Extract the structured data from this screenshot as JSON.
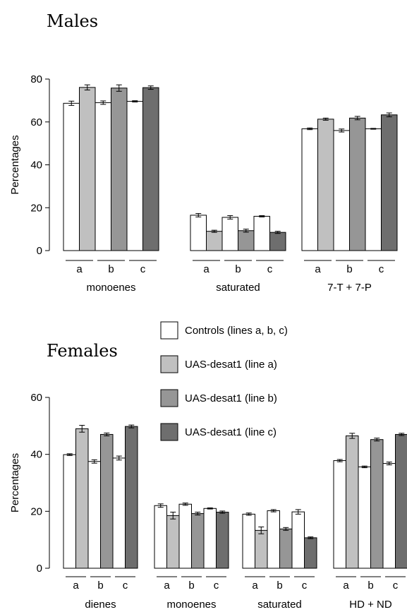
{
  "panels": [
    {
      "id": "males",
      "title": "Males",
      "ylabel": "Percentages",
      "ylim": [
        0,
        80
      ],
      "yticks": [
        0,
        20,
        40,
        60,
        80
      ],
      "line_labels": [
        "a",
        "b",
        "c"
      ],
      "groups": [
        {
          "label": "monoenes",
          "bars": [
            {
              "v": 68.7,
              "e": 1.0
            },
            {
              "v": 76.1,
              "e": 1.2
            },
            {
              "v": 69.0,
              "e": 0.8
            },
            {
              "v": 75.8,
              "e": 1.5
            },
            {
              "v": 69.6,
              "e": 0.3
            },
            {
              "v": 76.0,
              "e": 0.8
            }
          ]
        },
        {
          "label": "saturated",
          "bars": [
            {
              "v": 16.5,
              "e": 0.8
            },
            {
              "v": 9.0,
              "e": 0.5
            },
            {
              "v": 15.5,
              "e": 0.8
            },
            {
              "v": 9.3,
              "e": 0.7
            },
            {
              "v": 16.0,
              "e": 0.3
            },
            {
              "v": 8.5,
              "e": 0.5
            }
          ]
        },
        {
          "label": "7-T + 7-P",
          "bars": [
            {
              "v": 56.8,
              "e": 0.4
            },
            {
              "v": 61.3,
              "e": 0.5
            },
            {
              "v": 56.0,
              "e": 0.7
            },
            {
              "v": 61.8,
              "e": 0.8
            },
            {
              "v": 56.8,
              "e": 0.2
            },
            {
              "v": 63.3,
              "e": 0.9
            }
          ]
        }
      ]
    },
    {
      "id": "females",
      "title": "Females",
      "ylabel": "Percentages",
      "ylim": [
        0,
        60
      ],
      "yticks": [
        0,
        20,
        40,
        60
      ],
      "line_labels": [
        "a",
        "b",
        "c"
      ],
      "groups": [
        {
          "label": "dienes",
          "bars": [
            {
              "v": 39.9,
              "e": 0.3
            },
            {
              "v": 49.0,
              "e": 1.2
            },
            {
              "v": 37.5,
              "e": 0.6
            },
            {
              "v": 47.0,
              "e": 0.5
            },
            {
              "v": 38.7,
              "e": 0.7
            },
            {
              "v": 49.8,
              "e": 0.5
            }
          ]
        },
        {
          "label": "monoenes",
          "bars": [
            {
              "v": 22.0,
              "e": 0.6
            },
            {
              "v": 18.5,
              "e": 1.2
            },
            {
              "v": 22.5,
              "e": 0.4
            },
            {
              "v": 19.2,
              "e": 0.5
            },
            {
              "v": 21.0,
              "e": 0.2
            },
            {
              "v": 19.7,
              "e": 0.4
            }
          ]
        },
        {
          "label": "saturated",
          "bars": [
            {
              "v": 19.0,
              "e": 0.4
            },
            {
              "v": 13.3,
              "e": 1.2
            },
            {
              "v": 20.2,
              "e": 0.4
            },
            {
              "v": 13.8,
              "e": 0.5
            },
            {
              "v": 19.8,
              "e": 0.8
            },
            {
              "v": 10.7,
              "e": 0.3
            }
          ]
        },
        {
          "label": "HD + ND",
          "bars": [
            {
              "v": 37.8,
              "e": 0.4
            },
            {
              "v": 46.5,
              "e": 0.9
            },
            {
              "v": 35.6,
              "e": 0.3
            },
            {
              "v": 45.2,
              "e": 0.5
            },
            {
              "v": 36.8,
              "e": 0.5
            },
            {
              "v": 47.0,
              "e": 0.4
            }
          ]
        }
      ]
    }
  ],
  "legend": {
    "placement": "center",
    "items": [
      {
        "label": "Controls (lines a, b, c)",
        "color": "#ffffff"
      },
      {
        "label": "UAS-desat1 (line a)",
        "color": "#c0c0c0"
      },
      {
        "label": "UAS-desat1 (line b)",
        "color": "#969696"
      },
      {
        "label": "UAS-desat1 (line c)",
        "color": "#6e6e6e"
      }
    ]
  },
  "bar_colors": [
    "#ffffff",
    "#c0c0c0",
    "#ffffff",
    "#969696",
    "#ffffff",
    "#6e6e6e"
  ]
}
